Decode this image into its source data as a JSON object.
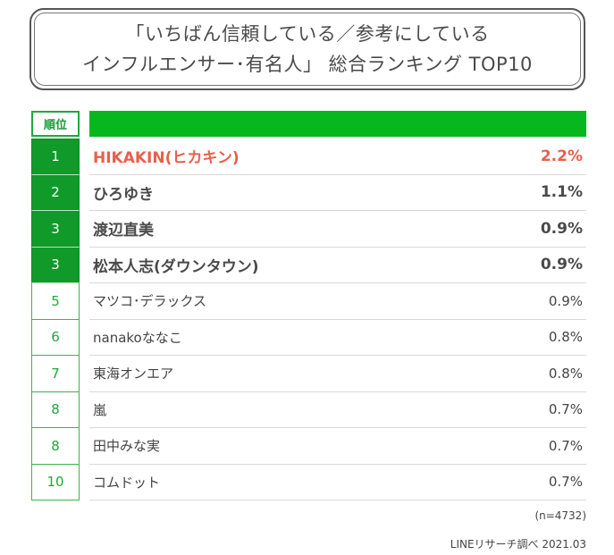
{
  "title": {
    "line1": "「いちばん信頼している／参考にしている",
    "line2": "インフルエンサー･有名人」 総合ランキング TOP10"
  },
  "table": {
    "rank_header": "順位"
  },
  "chart_data": {
    "type": "table",
    "title": "「いちばん信頼している／参考にしている インフルエンサー･有名人」 総合ランキング TOP10",
    "columns": [
      "順位",
      "",
      ""
    ],
    "rows": [
      {
        "rank": "1",
        "name": "HIKAKIN(ヒカキン)",
        "percent": "2.2%",
        "value": 2.2
      },
      {
        "rank": "2",
        "name": "ひろゆき",
        "percent": "1.1%",
        "value": 1.1
      },
      {
        "rank": "3",
        "name": "渡辺直美",
        "percent": "0.9%",
        "value": 0.9
      },
      {
        "rank": "3",
        "name": "松本人志(ダウンタウン)",
        "percent": "0.9%",
        "value": 0.9
      },
      {
        "rank": "5",
        "name": "マツコ･デラックス",
        "percent": "0.9%",
        "value": 0.9
      },
      {
        "rank": "6",
        "name": "nanakoななこ",
        "percent": "0.8%",
        "value": 0.8
      },
      {
        "rank": "7",
        "name": "東海オンエア",
        "percent": "0.8%",
        "value": 0.8
      },
      {
        "rank": "8",
        "name": "嵐",
        "percent": "0.7%",
        "value": 0.7
      },
      {
        "rank": "8",
        "name": "田中みな実",
        "percent": "0.7%",
        "value": 0.7
      },
      {
        "rank": "10",
        "name": "コムドット",
        "percent": "0.7%",
        "value": 0.7
      }
    ],
    "highlighted_row": 0,
    "top_rows": 4
  },
  "notes": {
    "sample": "(n=4732)",
    "source": "LINEリサーチ調べ 2021.03"
  },
  "colors": {
    "accent_green": "#06b71d",
    "rank_green": "#109a29",
    "highlight": "#e8604c"
  }
}
